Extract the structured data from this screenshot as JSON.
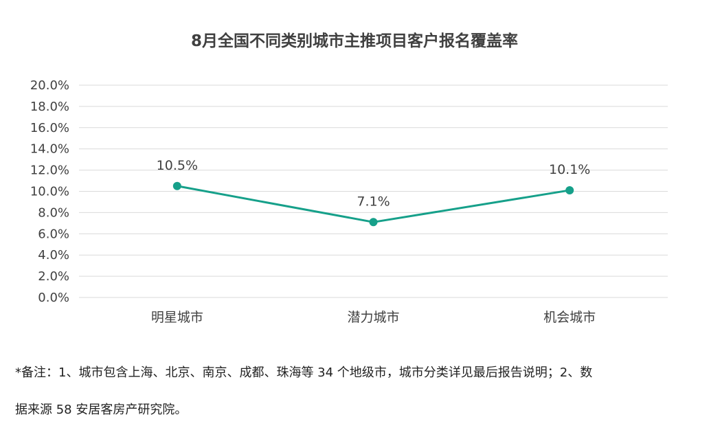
{
  "chart_data": {
    "type": "line",
    "title": "8月全国不同类别城市主推项目客户报名覆盖率",
    "categories": [
      "明星城市",
      "潜力城市",
      "机会城市"
    ],
    "series": [
      {
        "values": [
          10.5,
          7.1,
          10.1
        ],
        "data_labels": [
          "10.5%",
          "7.1%",
          "10.1%"
        ]
      }
    ],
    "ylim": [
      0,
      20
    ],
    "yticks": [
      "0.0%",
      "2.0%",
      "4.0%",
      "6.0%",
      "8.0%",
      "10.0%",
      "12.0%",
      "14.0%",
      "16.0%",
      "18.0%",
      "20.0%"
    ],
    "grid": true,
    "legend": "none",
    "line_color": "#16A08A"
  },
  "note": {
    "line1": "*备注：1、城市包含上海、北京、南京、成都、珠海等 34 个地级市，城市分类详见最后报告说明；2、数",
    "line2": "据来源 58 安居客房产研究院。"
  }
}
